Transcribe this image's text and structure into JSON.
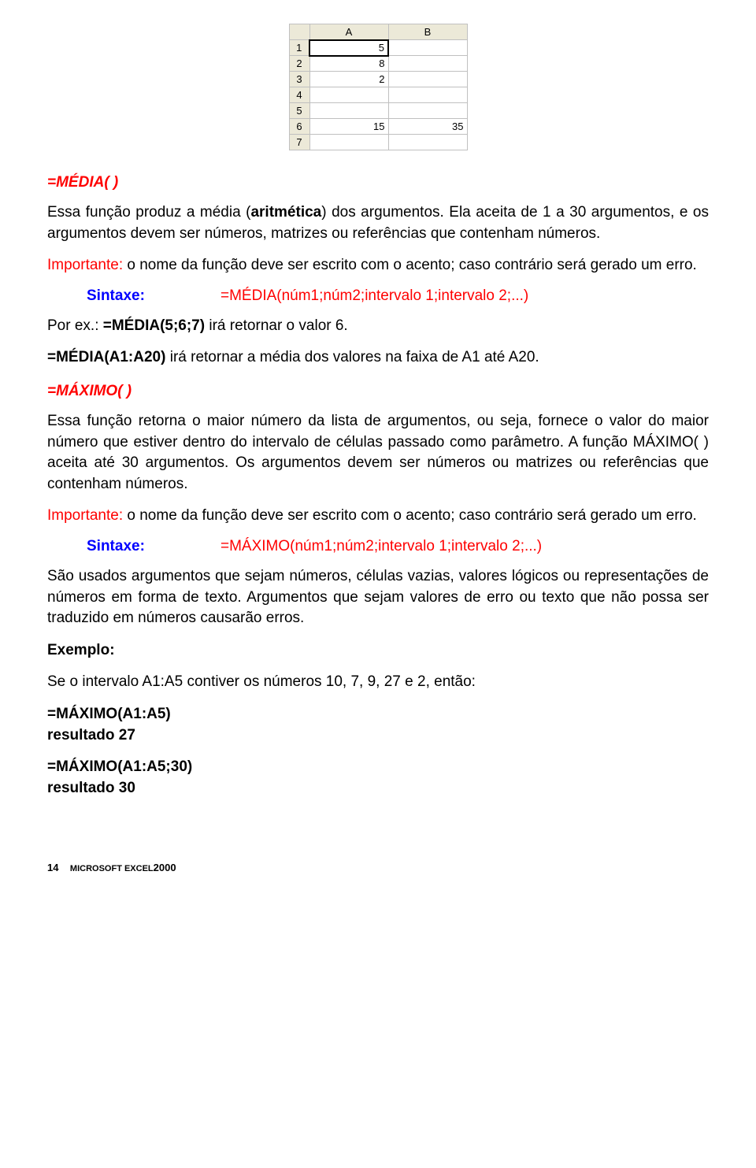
{
  "spreadsheet": {
    "col_headers": [
      "A",
      "B"
    ],
    "row_headers": [
      "1",
      "2",
      "3",
      "4",
      "5",
      "6",
      "7"
    ],
    "cells": {
      "A1": "5",
      "A2": "8",
      "A3": "2",
      "A4": "",
      "A5": "",
      "A6": "15",
      "A7": "",
      "B1": "",
      "B2": "",
      "B3": "",
      "B4": "",
      "B5": "",
      "B6": "35",
      "B7": ""
    },
    "selected_cell": "A1",
    "header_bg": "#ece9d8",
    "header_border": "#aca899",
    "cell_bg": "#ffffff",
    "cell_border": "#c0c0c0"
  },
  "media": {
    "heading": "=MÉDIA( )",
    "p1a": "Essa função produz a média (",
    "p1b": "aritmética",
    "p1c": ") dos argumentos. Ela aceita de 1 a 30 argumentos, e os argumentos devem ser números, matrizes ou referências que contenham números.",
    "imp_label": "Importante:",
    "imp_text": " o nome da função deve ser escrito com o acento; caso contrário será gerado um erro.",
    "sintaxe_label": "Sintaxe:",
    "sintaxe_value": "=MÉDIA(núm1;núm2;intervalo 1;intervalo 2;...)",
    "ex1a": "Por ex.: ",
    "ex1b": "=MÉDIA(5;6;7)",
    "ex1c": "  irá retornar o valor 6.",
    "ex2a": "=MÉDIA(A1:A20)",
    "ex2b": " irá retornar a média dos valores na faixa de A1 até A20."
  },
  "maximo": {
    "heading": "=MÁXIMO( )",
    "p1": "Essa função retorna o maior número da lista de argumentos, ou seja, fornece o valor do maior número que estiver dentro do intervalo de células passado como parâmetro. A função MÁXIMO( ) aceita até 30 argumentos. Os argumentos devem ser números ou matrizes ou referências que contenham números.",
    "imp_label": "Importante:",
    "imp_text": " o nome da função deve ser escrito com o acento; caso contrário será gerado um erro.",
    "sintaxe_label": "Sintaxe:",
    "sintaxe_value": "=MÁXIMO(núm1;núm2;intervalo 1;intervalo 2;...)",
    "p2": "São usados argumentos que sejam números, células vazias, valores lógicos ou representações de números em forma de texto. Argumentos que sejam valores de erro ou texto que não possa ser traduzido em números causarão erros.",
    "exemplo_label": "Exemplo:",
    "exemplo_text": "Se o intervalo A1:A5 contiver os números 10, 7, 9, 27 e 2, então:",
    "r1a": "=MÁXIMO(A1:A5)",
    "r1b": "resultado 27",
    "r2a": "=MÁXIMO(A1:A5;30)",
    "r2b": "resultado 30"
  },
  "footer": {
    "page": "14",
    "product": "MICROSOFT EXCEL",
    "year": "2000"
  }
}
